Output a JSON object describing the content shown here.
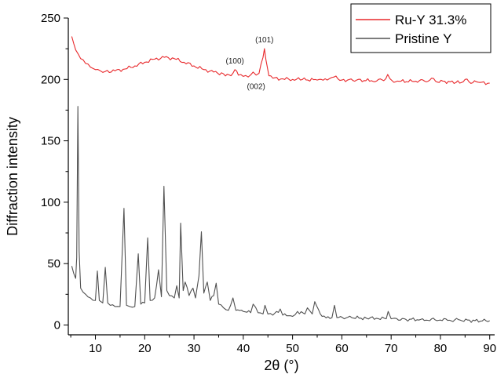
{
  "chart_data": {
    "type": "line",
    "title": "",
    "xlabel": "2θ (°)",
    "ylabel": "Diffraction intensity",
    "xlim": [
      4.5,
      91
    ],
    "ylim": [
      -8,
      250
    ],
    "xticks": [
      10,
      20,
      30,
      40,
      50,
      60,
      70,
      80,
      90
    ],
    "yticks": [
      0,
      50,
      100,
      150,
      200,
      250
    ],
    "grid": false,
    "legend_position": "top-right",
    "series": [
      {
        "name": "Ru-Y 31.3%",
        "color": "#e8282b",
        "x": [
          5.2,
          6,
          7,
          8,
          9,
          10,
          11,
          12,
          14,
          16,
          18,
          20,
          22,
          24,
          26,
          28,
          30,
          32,
          34,
          36,
          37.5,
          38.3,
          39,
          40,
          41,
          42,
          42.6,
          43.2,
          44.0,
          44.3,
          44.6,
          45.2,
          46,
          48,
          50,
          52,
          55,
          57,
          58.4,
          60,
          63,
          66,
          68.5,
          69.3,
          70.2,
          72,
          75,
          77.5,
          78.2,
          79,
          82,
          84.3,
          85,
          85.8,
          88,
          90
        ],
        "values": [
          235,
          224,
          217,
          213,
          210,
          208,
          207,
          206.5,
          207,
          208.5,
          211,
          214,
          216.5,
          218,
          217,
          214,
          211,
          208,
          206,
          204.5,
          203,
          208,
          203.5,
          202.5,
          202,
          206,
          203.5,
          205,
          218,
          225,
          216,
          203,
          201,
          200.5,
          200,
          200,
          199.5,
          199.5,
          202,
          199.5,
          199.5,
          199,
          199,
          204,
          199,
          198.5,
          198.5,
          198.5,
          201,
          198.5,
          198,
          197.5,
          200,
          198,
          197.5,
          197
        ]
      },
      {
        "name": "Pristine Y",
        "color": "#505050",
        "x": [
          5.2,
          5.6,
          6.0,
          6.2,
          6.45,
          6.7,
          7,
          8,
          9,
          10,
          10.4,
          10.8,
          11.5,
          12.0,
          12.5,
          13,
          14,
          15,
          15.8,
          16.3,
          17,
          18,
          18.7,
          19.2,
          20,
          20.6,
          21.1,
          22,
          22.8,
          23.4,
          23.9,
          24.5,
          25,
          26,
          26.5,
          27,
          27.3,
          27.8,
          28.2,
          29,
          29.8,
          30.3,
          31,
          31.5,
          32,
          32.7,
          33.3,
          34,
          34.5,
          35,
          36,
          37,
          37.9,
          38.5,
          40,
          41.5,
          42,
          43,
          44,
          44.4,
          45,
          46,
          47.5,
          48,
          50,
          51,
          52.5,
          53,
          54,
          54.5,
          56,
          58,
          58.5,
          59,
          62,
          65,
          67,
          69,
          69.4,
          70,
          73,
          76,
          80,
          84,
          87,
          90
        ],
        "values": [
          48,
          42,
          38,
          55,
          178,
          60,
          30,
          25,
          22,
          20,
          44,
          20,
          18,
          47,
          18,
          16,
          15,
          15,
          95,
          16,
          15,
          15,
          58,
          17,
          18,
          71,
          20,
          22,
          45,
          23,
          113,
          28,
          24,
          22,
          32,
          22,
          83,
          28,
          35,
          24,
          30,
          22,
          40,
          76,
          26,
          35,
          20,
          24,
          34,
          17,
          14,
          12,
          22,
          12,
          11,
          10,
          17,
          10,
          9,
          16,
          9,
          8,
          13,
          8,
          7,
          11,
          9,
          14,
          9,
          19,
          7,
          6,
          16,
          6,
          6,
          5.5,
          5.5,
          5,
          11,
          5,
          4.5,
          4.5,
          4,
          4,
          3.5,
          3.5
        ]
      }
    ],
    "annotations": [
      {
        "text": "(100)",
        "x": 38.3,
        "y": 208,
        "position": "above"
      },
      {
        "text": "(101)",
        "x": 44.3,
        "y": 225,
        "position": "above"
      },
      {
        "text": "(002)",
        "x": 42.6,
        "y": 203,
        "position": "below"
      }
    ]
  }
}
